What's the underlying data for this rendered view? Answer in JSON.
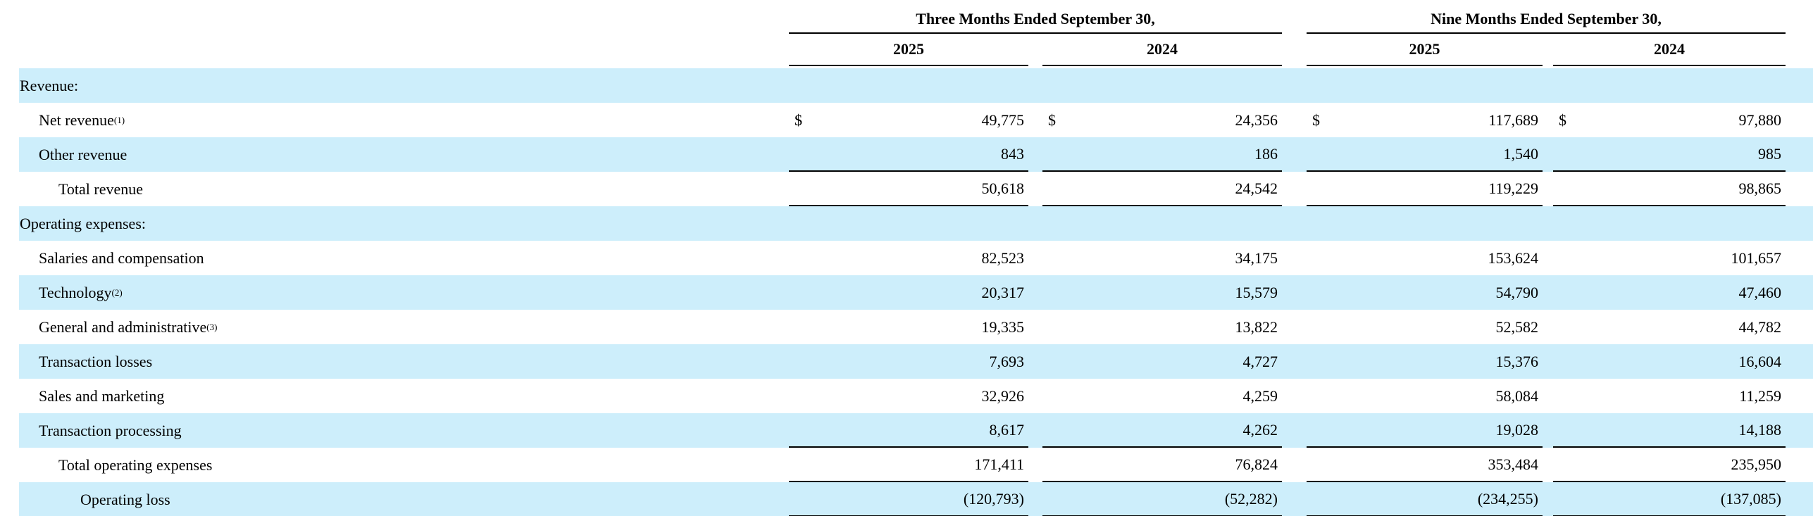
{
  "page": {
    "background_color": "#ffffff",
    "row_shade_color": "#cdeefb",
    "rule_color": "#000000"
  },
  "table": {
    "groups": [
      {
        "label": "Three Months Ended September 30,",
        "years": [
          "2025",
          "2024"
        ]
      },
      {
        "label": "Nine Months Ended September 30,",
        "years": [
          "2025",
          "2024"
        ]
      }
    ],
    "rows": [
      {
        "label": "Revenue:",
        "indent": 0,
        "shaded": true,
        "section": true,
        "dollar": false,
        "rule_below": false,
        "values": [
          "",
          "",
          "",
          ""
        ]
      },
      {
        "label": "Net revenue",
        "sup": "(1)",
        "indent": 1,
        "shaded": false,
        "section": false,
        "dollar": true,
        "rule_below": false,
        "values": [
          "49,775",
          "24,356",
          "117,689",
          "97,880"
        ]
      },
      {
        "label": "Other revenue",
        "indent": 1,
        "shaded": true,
        "section": false,
        "dollar": false,
        "rule_below": true,
        "values": [
          "843",
          "186",
          "1,540",
          "985"
        ]
      },
      {
        "label": "Total revenue",
        "indent": 2,
        "shaded": false,
        "section": false,
        "dollar": false,
        "rule_below": true,
        "values": [
          "50,618",
          "24,542",
          "119,229",
          "98,865"
        ]
      },
      {
        "label": "Operating expenses:",
        "indent": 0,
        "shaded": true,
        "section": true,
        "dollar": false,
        "rule_below": false,
        "values": [
          "",
          "",
          "",
          ""
        ]
      },
      {
        "label": "Salaries and compensation",
        "indent": 1,
        "shaded": false,
        "section": false,
        "dollar": false,
        "rule_below": false,
        "values": [
          "82,523",
          "34,175",
          "153,624",
          "101,657"
        ]
      },
      {
        "label": "Technology",
        "sup": "(2)",
        "indent": 1,
        "shaded": true,
        "section": false,
        "dollar": false,
        "rule_below": false,
        "values": [
          "20,317",
          "15,579",
          "54,790",
          "47,460"
        ]
      },
      {
        "label": "General and administrative",
        "sup": "(3)",
        "indent": 1,
        "shaded": false,
        "section": false,
        "dollar": false,
        "rule_below": false,
        "values": [
          "19,335",
          "13,822",
          "52,582",
          "44,782"
        ]
      },
      {
        "label": "Transaction losses",
        "indent": 1,
        "shaded": true,
        "section": false,
        "dollar": false,
        "rule_below": false,
        "values": [
          "7,693",
          "4,727",
          "15,376",
          "16,604"
        ]
      },
      {
        "label": "Sales and marketing",
        "indent": 1,
        "shaded": false,
        "section": false,
        "dollar": false,
        "rule_below": false,
        "values": [
          "32,926",
          "4,259",
          "58,084",
          "11,259"
        ]
      },
      {
        "label": "Transaction processing",
        "indent": 1,
        "shaded": true,
        "section": false,
        "dollar": false,
        "rule_below": true,
        "values": [
          "8,617",
          "4,262",
          "19,028",
          "14,188"
        ]
      },
      {
        "label": "Total operating expenses",
        "indent": 2,
        "shaded": false,
        "section": false,
        "dollar": false,
        "rule_below": true,
        "values": [
          "171,411",
          "76,824",
          "353,484",
          "235,950"
        ]
      },
      {
        "label": "Operating loss",
        "indent": 3,
        "shaded": true,
        "section": false,
        "dollar": false,
        "rule_below": true,
        "values": [
          "(120,793)",
          "(52,282)",
          "(234,255)",
          "(137,085)"
        ]
      }
    ],
    "dollar_symbol": "$"
  }
}
